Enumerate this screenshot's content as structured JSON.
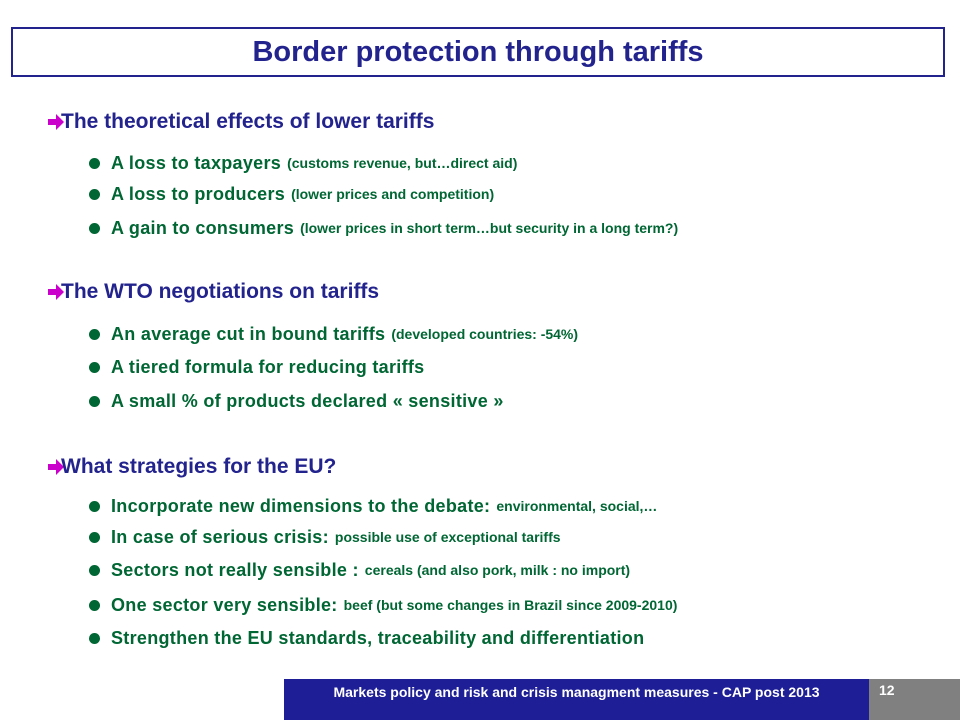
{
  "title": "Border protection through tariffs",
  "colors": {
    "title": "#23238e",
    "heading": "#23238e",
    "bullet_text": "#006633",
    "arrow": "#cc00cc",
    "footer_bg": "#1e1e96",
    "page_bg": "#808080"
  },
  "sections": [
    {
      "heading": "The theoretical effects of lower tariffs",
      "bullets": [
        {
          "main": "A loss to taxpayers",
          "sub": "(customs revenue, but…direct aid)"
        },
        {
          "main": "A loss to producers",
          "sub": "(lower prices and competition)"
        },
        {
          "main": "A gain to consumers",
          "sub": "(lower prices in short term…but security in a long term?)"
        }
      ]
    },
    {
      "heading": "The WTO negotiations on tariffs",
      "bullets": [
        {
          "main": "An average cut in bound tariffs",
          "sub": "(developed countries: -54%)"
        },
        {
          "main": "A tiered formula for reducing tariffs",
          "sub": ""
        },
        {
          "main": "A small % of products declared « sensitive »",
          "sub": ""
        }
      ]
    },
    {
      "heading": "What strategies for the EU?",
      "bullets": [
        {
          "main": "Incorporate new dimensions to the debate:",
          "sub": "environmental, social,…"
        },
        {
          "main": "In case of serious crisis:",
          "sub": "possible use of exceptional tariffs"
        },
        {
          "main": "Sectors not really sensible :",
          "sub": "cereals (and also pork, milk  : no import)"
        },
        {
          "main": "One sector very sensible:",
          "sub": "beef (but some changes in Brazil since 2009-2010)"
        },
        {
          "main": "Strengthen the EU standards, traceability and differentiation",
          "sub": ""
        }
      ]
    }
  ],
  "footer": {
    "text": "Markets policy and risk and crisis managment measures - CAP post 2013",
    "page": "12"
  }
}
